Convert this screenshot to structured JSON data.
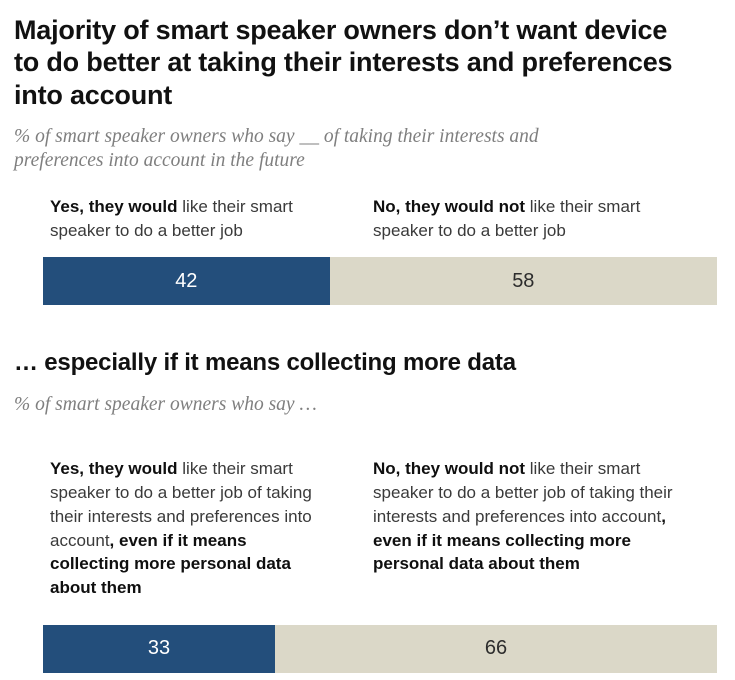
{
  "header": {
    "title": "Majority of smart speaker owners don’t want device to do better at taking their interests and preferences into account",
    "title_lines": [
      "Majority of smart speaker owners don’t want device",
      "to do better at taking their interests and preferences",
      "into account"
    ],
    "subtitle_lines": [
      "% of smart speaker owners who say __ of taking their interests and",
      "preferences into account in the future"
    ]
  },
  "section2": {
    "title": "… especially if it means collecting more data",
    "subtitle": "% of smart speaker owners who say …"
  },
  "chart1": {
    "labels": {
      "yes": {
        "bold": "Yes, they would",
        "rest": " like their smart speaker to do a better job",
        "bold2": ""
      },
      "no": {
        "bold": "No, they would not",
        "rest": " like their smart speaker to do a better job",
        "bold2": ""
      }
    }
  },
  "chart2": {
    "labels": {
      "yes": {
        "bold": "Yes, they would",
        "rest": " like their smart speaker to do a better job of taking their interests and preferences into account",
        "bold2": ", even if it means collecting more personal data about them"
      },
      "no": {
        "bold": "No, they would not",
        "rest": " like their smart speaker to do a better job of taking their interests and preferences into account",
        "bold2": ", even if it means collecting more personal data about them"
      }
    }
  },
  "chart_data": [
    {
      "type": "bar",
      "orientation": "horizontal-stacked",
      "title": "Majority of smart speaker owners don’t want device to do better at taking their interests and preferences into account",
      "subtitle": "% of smart speaker owners who say __ of taking their interests and preferences into account in the future",
      "categories": [
        "Yes, they would like their smart speaker to do a better job",
        "No, they would not like their smart speaker to do a better job"
      ],
      "values": [
        42,
        58
      ],
      "colors": [
        "#234E7B",
        "#DBD8C8"
      ],
      "value_label_colors": [
        "#ffffff",
        "#2d2d2d"
      ],
      "xlim": [
        0,
        100
      ],
      "grid": false,
      "legend": "labels-above-bar"
    },
    {
      "type": "bar",
      "orientation": "horizontal-stacked",
      "title": "… especially if it means collecting more data",
      "subtitle": "% of smart speaker owners who say …",
      "categories": [
        "Yes, they would like their smart speaker to do a better job of taking their interests and preferences into account, even if it means collecting more personal data about them",
        "No, they would not like their smart speaker to do a better job of taking their interests and preferences into account, even if it means collecting more personal data about them"
      ],
      "values": [
        33,
        66
      ],
      "colors": [
        "#234E7B",
        "#DBD8C8"
      ],
      "value_label_colors": [
        "#ffffff",
        "#2d2d2d"
      ],
      "xlim": [
        0,
        100
      ],
      "grid": false,
      "legend": "labels-above-bar"
    }
  ],
  "colors": {
    "yes_segment": "#234E7B",
    "no_segment": "#DBD8C8",
    "title_text": "#111111",
    "subtitle_text": "#7f7f7f",
    "label_text": "#3a3a3a"
  }
}
